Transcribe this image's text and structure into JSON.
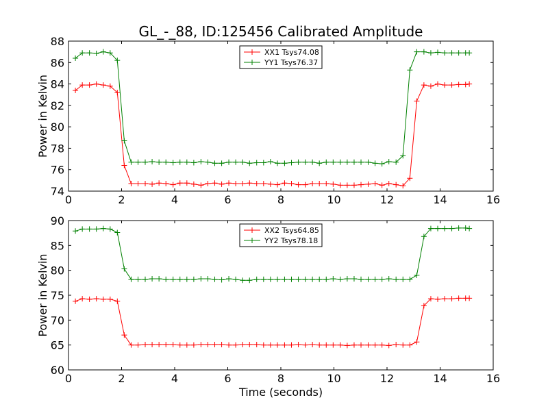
{
  "chart_data": [
    {
      "type": "line",
      "title": "GL_-_88, ID:125456 Calibrated Amplitude",
      "xlabel": "",
      "ylabel": "Power in Kelvin",
      "xlim": [
        0,
        16
      ],
      "ylim": [
        74,
        88
      ],
      "xticks": [
        0,
        2,
        4,
        6,
        8,
        10,
        12,
        14,
        16
      ],
      "yticks": [
        74,
        76,
        78,
        80,
        82,
        84,
        86,
        88
      ],
      "grid": false,
      "legend": "top-center",
      "x": [
        0.26,
        0.52,
        0.79,
        1.05,
        1.31,
        1.57,
        1.84,
        2.1,
        2.36,
        2.62,
        2.89,
        3.15,
        3.41,
        3.67,
        3.94,
        4.2,
        4.46,
        4.72,
        4.99,
        5.25,
        5.51,
        5.77,
        6.04,
        6.3,
        6.56,
        6.82,
        7.09,
        7.35,
        7.61,
        7.87,
        8.14,
        8.4,
        8.66,
        8.92,
        9.19,
        9.45,
        9.71,
        9.97,
        10.24,
        10.5,
        10.76,
        11.02,
        11.29,
        11.55,
        11.81,
        12.07,
        12.34,
        12.6,
        12.86,
        13.12,
        13.39,
        13.65,
        13.91,
        14.17,
        14.44,
        14.7,
        14.96,
        15.1
      ],
      "series": [
        {
          "name": "XX1 Tsys74.08",
          "color": "#ff0000",
          "values": [
            83.4,
            83.9,
            83.9,
            84.0,
            83.9,
            83.8,
            83.2,
            76.4,
            74.7,
            74.7,
            74.7,
            74.65,
            74.75,
            74.7,
            74.6,
            74.75,
            74.75,
            74.65,
            74.55,
            74.7,
            74.75,
            74.65,
            74.75,
            74.7,
            74.7,
            74.75,
            74.7,
            74.7,
            74.65,
            74.6,
            74.75,
            74.7,
            74.6,
            74.6,
            74.7,
            74.7,
            74.7,
            74.65,
            74.55,
            74.55,
            74.55,
            74.6,
            74.65,
            74.7,
            74.55,
            74.7,
            74.6,
            74.5,
            75.2,
            82.4,
            83.9,
            83.8,
            84.0,
            83.9,
            83.9,
            83.95,
            83.95,
            84.0
          ]
        },
        {
          "name": "YY1 Tsys76.37",
          "color": "#008000",
          "values": [
            86.4,
            86.9,
            86.9,
            86.85,
            87.0,
            86.9,
            86.2,
            78.7,
            76.7,
            76.7,
            76.7,
            76.75,
            76.7,
            76.7,
            76.65,
            76.7,
            76.7,
            76.65,
            76.75,
            76.7,
            76.6,
            76.6,
            76.7,
            76.7,
            76.7,
            76.6,
            76.65,
            76.65,
            76.75,
            76.6,
            76.6,
            76.65,
            76.7,
            76.7,
            76.7,
            76.6,
            76.7,
            76.7,
            76.7,
            76.7,
            76.7,
            76.7,
            76.7,
            76.6,
            76.55,
            76.75,
            76.7,
            77.3,
            85.3,
            87.0,
            87.0,
            86.9,
            86.95,
            86.9,
            86.9,
            86.9,
            86.9,
            86.9
          ]
        }
      ]
    },
    {
      "type": "line",
      "title": "",
      "xlabel": "Time (seconds)",
      "ylabel": "Power in Kelvin",
      "xlim": [
        0,
        16
      ],
      "ylim": [
        60,
        90
      ],
      "xticks": [
        0,
        2,
        4,
        6,
        8,
        10,
        12,
        14,
        16
      ],
      "yticks": [
        60,
        65,
        70,
        75,
        80,
        85,
        90
      ],
      "grid": false,
      "legend": "top-center",
      "x": [
        0.26,
        0.52,
        0.79,
        1.05,
        1.31,
        1.57,
        1.84,
        2.1,
        2.36,
        2.62,
        2.89,
        3.15,
        3.41,
        3.67,
        3.94,
        4.2,
        4.46,
        4.72,
        4.99,
        5.25,
        5.51,
        5.77,
        6.04,
        6.3,
        6.56,
        6.82,
        7.09,
        7.35,
        7.61,
        7.87,
        8.14,
        8.4,
        8.66,
        8.92,
        9.19,
        9.45,
        9.71,
        9.97,
        10.24,
        10.5,
        10.76,
        11.02,
        11.29,
        11.55,
        11.81,
        12.07,
        12.34,
        12.6,
        12.86,
        13.12,
        13.39,
        13.65,
        13.91,
        14.17,
        14.44,
        14.7,
        14.96,
        15.1
      ],
      "series": [
        {
          "name": "XX2 Tsys64.85",
          "color": "#ff0000",
          "values": [
            73.8,
            74.3,
            74.2,
            74.3,
            74.2,
            74.2,
            73.8,
            67.0,
            65.0,
            65.0,
            65.1,
            65.1,
            65.1,
            65.1,
            65.1,
            65.0,
            65.0,
            65.0,
            65.1,
            65.1,
            65.1,
            65.1,
            65.0,
            65.0,
            65.1,
            65.1,
            65.1,
            65.0,
            65.0,
            65.0,
            65.0,
            65.0,
            65.1,
            65.0,
            65.1,
            65.0,
            65.0,
            65.0,
            65.0,
            64.9,
            65.0,
            65.0,
            65.0,
            65.0,
            65.0,
            64.9,
            65.1,
            65.0,
            65.0,
            65.6,
            72.9,
            74.3,
            74.2,
            74.3,
            74.3,
            74.4,
            74.4,
            74.4
          ]
        },
        {
          "name": "YY2 Tsys78.18",
          "color": "#008000",
          "values": [
            87.9,
            88.3,
            88.3,
            88.3,
            88.4,
            88.3,
            87.6,
            80.3,
            78.2,
            78.2,
            78.2,
            78.3,
            78.3,
            78.2,
            78.2,
            78.2,
            78.2,
            78.2,
            78.3,
            78.3,
            78.2,
            78.1,
            78.3,
            78.2,
            78.0,
            78.0,
            78.2,
            78.2,
            78.2,
            78.2,
            78.2,
            78.2,
            78.2,
            78.2,
            78.2,
            78.2,
            78.2,
            78.3,
            78.2,
            78.3,
            78.3,
            78.2,
            78.2,
            78.2,
            78.2,
            78.3,
            78.2,
            78.2,
            78.2,
            79.0,
            86.8,
            88.4,
            88.4,
            88.4,
            88.4,
            88.5,
            88.5,
            88.4
          ]
        }
      ]
    }
  ]
}
